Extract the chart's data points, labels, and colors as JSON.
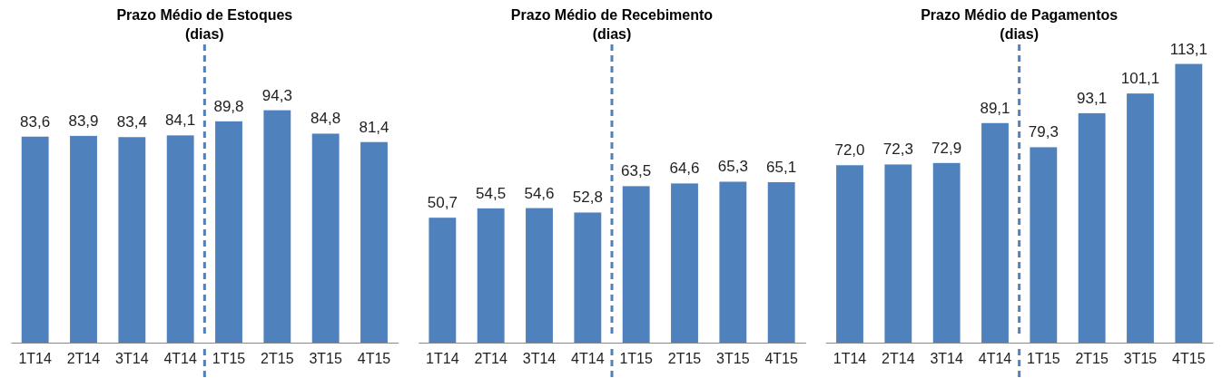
{
  "chart_data": [
    {
      "type": "bar",
      "title": "Prazo Médio de Estoques\n(dias)",
      "categories": [
        "1T14",
        "2T14",
        "3T14",
        "4T14",
        "1T15",
        "2T15",
        "3T15",
        "4T15"
      ],
      "values": [
        83.6,
        83.9,
        83.4,
        84.1,
        89.8,
        94.3,
        84.8,
        81.4
      ],
      "value_labels": [
        "83,6",
        "83,9",
        "83,4",
        "84,1",
        "89,8",
        "94,3",
        "84,8",
        "81,4"
      ],
      "color": "#4f81bd",
      "tick_labels": "x"
    },
    {
      "type": "bar",
      "title": "Prazo Médio de Recebimento\n(dias)",
      "categories": [
        "1T14",
        "2T14",
        "3T14",
        "4T14",
        "1T15",
        "2T15",
        "3T15",
        "4T15"
      ],
      "values": [
        50.7,
        54.5,
        54.6,
        52.8,
        63.5,
        64.6,
        65.3,
        65.1
      ],
      "value_labels": [
        "50,7",
        "54,5",
        "54,6",
        "52,8",
        "63,5",
        "64,6",
        "65,3",
        "65,1"
      ],
      "color": "#4f81bd",
      "tick_labels": "x"
    },
    {
      "type": "bar",
      "title": "Prazo Médio de Pagamentos\n(dias)",
      "categories": [
        "1T14",
        "2T14",
        "3T14",
        "4T14",
        "1T15",
        "2T15",
        "3T15",
        "4T15"
      ],
      "values": [
        72.0,
        72.3,
        72.9,
        89.1,
        79.3,
        93.1,
        101.1,
        113.1
      ],
      "value_labels": [
        "72,0",
        "72,3",
        "72,9",
        "89,1",
        "79,3",
        "93,1",
        "101,1",
        "113,1"
      ],
      "color": "#4f81bd",
      "tick_labels": "x"
    }
  ]
}
